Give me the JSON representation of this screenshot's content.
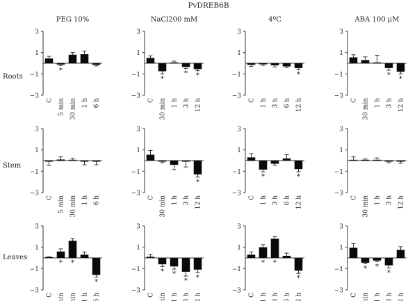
{
  "title": "PvDREB6B",
  "tissues": [
    "Roots",
    "Stem",
    "Leaves"
  ],
  "chart_data": [
    {
      "type": "bar",
      "treatment": "PEG 10%",
      "categories": [
        "C",
        "5 min",
        "30 min",
        "1 h",
        "6 h"
      ],
      "ylim": [
        -3,
        3
      ],
      "yticks": [
        "3",
        "1",
        "−1",
        "−3"
      ],
      "panels": [
        {
          "tissue": "Roots",
          "values": [
            0.45,
            -0.12,
            0.8,
            0.85,
            -0.15
          ],
          "errors": [
            0.2,
            0.1,
            0.2,
            0.3,
            0.1
          ],
          "significant": [
            false,
            true,
            false,
            false,
            false
          ]
        },
        {
          "tissue": "Stem",
          "values": [
            -0.1,
            0.1,
            0.05,
            -0.1,
            -0.1
          ],
          "errors": [
            0.35,
            0.25,
            0.15,
            0.3,
            0.3
          ],
          "significant": [
            false,
            false,
            false,
            false,
            false
          ]
        },
        {
          "tissue": "Leaves",
          "values": [
            0.0,
            0.6,
            1.6,
            0.3,
            -1.6
          ],
          "errors": [
            0.1,
            0.25,
            0.2,
            0.25,
            0.2
          ],
          "significant": [
            false,
            true,
            true,
            false,
            true
          ]
        }
      ]
    },
    {
      "type": "bar",
      "treatment": "NaCl200 mM",
      "categories": [
        "C",
        "30 min",
        "1 h",
        "3 h",
        "12 h"
      ],
      "ylim": [
        -3,
        3
      ],
      "yticks": [
        "3",
        "1",
        "−1",
        "−3"
      ],
      "panels": [
        {
          "tissue": "Roots",
          "values": [
            0.5,
            -0.75,
            0.05,
            -0.35,
            -0.55
          ],
          "errors": [
            0.2,
            0.25,
            0.15,
            0.15,
            0.15
          ],
          "significant": [
            false,
            true,
            false,
            true,
            true
          ]
        },
        {
          "tissue": "Stem",
          "values": [
            0.55,
            -0.1,
            -0.4,
            -0.1,
            -1.3
          ],
          "errors": [
            0.4,
            0.1,
            0.45,
            0.5,
            0.25
          ],
          "significant": [
            false,
            false,
            false,
            false,
            true
          ]
        },
        {
          "tissue": "Leaves",
          "values": [
            0.1,
            -0.6,
            -0.8,
            -1.3,
            -1.1
          ],
          "errors": [
            0.2,
            0.2,
            0.25,
            0.4,
            0.3
          ],
          "significant": [
            false,
            true,
            true,
            true,
            true
          ]
        }
      ]
    },
    {
      "type": "bar",
      "treatment": "4ºC",
      "categories": [
        "C",
        "1 h",
        "3 h",
        "6 h",
        "12 h"
      ],
      "ylim": [
        -3,
        3
      ],
      "yticks": [
        "3",
        "1",
        "−1",
        "−3"
      ],
      "panels": [
        {
          "tissue": "Roots",
          "values": [
            -0.15,
            -0.1,
            -0.2,
            -0.3,
            -0.45
          ],
          "errors": [
            0.15,
            0.1,
            0.15,
            0.1,
            0.15
          ],
          "significant": [
            false,
            false,
            false,
            false,
            true
          ]
        },
        {
          "tissue": "Stem",
          "values": [
            0.3,
            -0.85,
            -0.3,
            0.2,
            -0.8
          ],
          "errors": [
            0.35,
            0.2,
            0.15,
            0.35,
            0.25
          ],
          "significant": [
            false,
            true,
            false,
            false,
            true
          ]
        },
        {
          "tissue": "Leaves",
          "values": [
            0.3,
            1.0,
            1.8,
            0.2,
            -1.2
          ],
          "errors": [
            0.25,
            0.25,
            0.2,
            0.25,
            0.25
          ],
          "significant": [
            false,
            true,
            true,
            false,
            true
          ]
        }
      ]
    },
    {
      "type": "bar",
      "treatment": "ABA 100 μM",
      "categories": [
        "C",
        "30 min",
        "1 h",
        "3 h",
        "12 h"
      ],
      "ylim": [
        -3,
        3
      ],
      "yticks": [
        "3",
        "1",
        "−1",
        "−3"
      ],
      "panels": [
        {
          "tissue": "Roots",
          "values": [
            0.55,
            0.3,
            0.0,
            -0.45,
            -0.8
          ],
          "errors": [
            0.25,
            0.3,
            0.75,
            0.2,
            0.2
          ],
          "significant": [
            false,
            false,
            false,
            true,
            true
          ]
        },
        {
          "tissue": "Stem",
          "values": [
            0.0,
            0.0,
            0.0,
            -0.1,
            -0.1
          ],
          "errors": [
            0.35,
            0.15,
            0.25,
            0.1,
            0.15
          ],
          "significant": [
            false,
            false,
            false,
            false,
            false
          ]
        },
        {
          "tissue": "Leaves",
          "values": [
            0.95,
            -0.45,
            -0.25,
            -0.7,
            0.75
          ],
          "errors": [
            0.4,
            0.1,
            0.1,
            0.25,
            0.3
          ],
          "significant": [
            false,
            true,
            true,
            true,
            false
          ]
        }
      ]
    }
  ]
}
